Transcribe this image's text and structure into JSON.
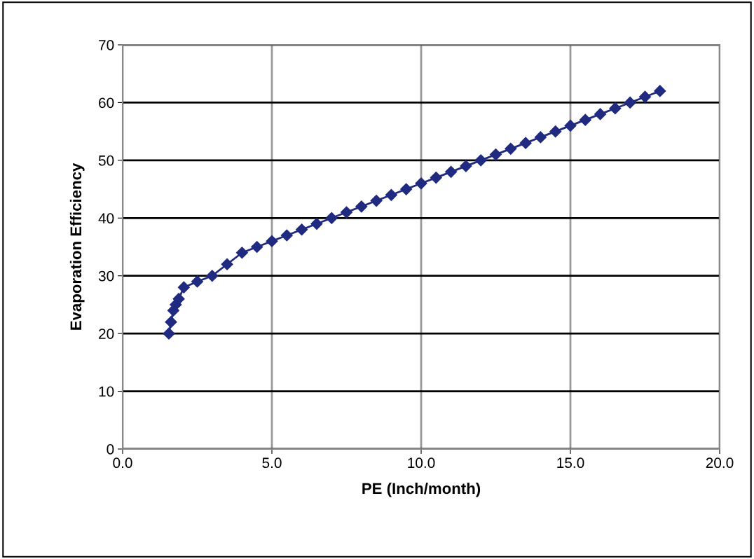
{
  "chart_data": {
    "type": "line",
    "xlabel": "PE (Inch/month)",
    "ylabel": "Evaporation Efficiency",
    "x": [
      1.55,
      1.62,
      1.7,
      1.78,
      1.88,
      2.05,
      2.5,
      3.0,
      3.5,
      4.0,
      4.5,
      5.0,
      5.5,
      6.0,
      6.5,
      7.0,
      7.5,
      8.0,
      8.5,
      9.0,
      9.5,
      10.0,
      10.5,
      11.0,
      11.5,
      12.0,
      12.5,
      13.0,
      13.5,
      14.0,
      14.5,
      15.0,
      15.5,
      16.0,
      16.5,
      17.0,
      17.5,
      18.0
    ],
    "series": [
      {
        "color": "#1f2a80",
        "values": [
          20,
          22,
          24,
          25,
          26,
          28,
          29,
          30,
          32,
          34,
          35,
          36,
          37,
          38,
          39,
          40,
          41,
          42,
          43,
          44,
          45,
          46,
          47,
          48,
          49,
          50,
          51,
          52,
          53,
          54,
          55,
          56,
          57,
          58,
          59,
          60,
          61,
          62
        ]
      }
    ],
    "marker": "diamond",
    "line_style": "solid",
    "grid": true,
    "xlim": [
      0,
      20
    ],
    "xticks": [
      {
        "value": 0,
        "label": "0.0"
      },
      {
        "value": 5,
        "label": "5.0"
      },
      {
        "value": 10,
        "label": "10.0"
      },
      {
        "value": 15,
        "label": "15.0"
      },
      {
        "value": 20,
        "label": "20.0"
      }
    ],
    "ylim": [
      0,
      70
    ],
    "yticks": [
      0,
      10,
      20,
      30,
      40,
      50,
      60,
      70
    ]
  }
}
